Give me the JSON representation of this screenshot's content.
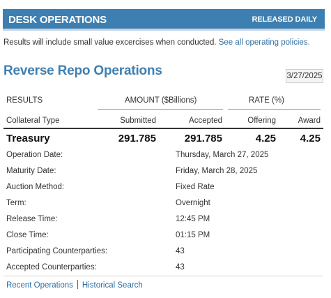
{
  "header": {
    "title": "DESK OPERATIONS",
    "badge": "RELEASED DAILY"
  },
  "intro": {
    "text": "Results will include small value excercises when conducted. ",
    "link": "See all operating policies."
  },
  "section": {
    "title": "Reverse Repo Operations",
    "date": "3/27/2025"
  },
  "table": {
    "group_headers": {
      "results": "RESULTS",
      "amount": "AMOUNT ($Billions)",
      "rate": "RATE (%)"
    },
    "columns": {
      "collateral": "Collateral Type",
      "submitted": "Submitted",
      "accepted": "Accepted",
      "offering": "Offering",
      "award": "Award"
    },
    "row": {
      "collateral": "Treasury",
      "submitted": "291.785",
      "accepted": "291.785",
      "offering": "4.25",
      "award": "4.25"
    }
  },
  "details": [
    {
      "label": "Operation Date:",
      "value": "Thursday, March 27, 2025"
    },
    {
      "label": "Maturity Date:",
      "value": "Friday, March 28, 2025"
    },
    {
      "label": "Auction Method:",
      "value": "Fixed Rate"
    },
    {
      "label": "Term:",
      "value": "Overnight"
    },
    {
      "label": "Release Time:",
      "value": "12:45 PM"
    },
    {
      "label": "Close Time:",
      "value": "01:15 PM"
    },
    {
      "label": "Participating Counterparties:",
      "value": "43"
    },
    {
      "label": "Accepted Counterparties:",
      "value": "43"
    }
  ],
  "footer": {
    "recent": "Recent Operations",
    "historical": "Historical Search"
  },
  "colors": {
    "accent": "#3e7fb1",
    "link": "#2d6ea4"
  }
}
